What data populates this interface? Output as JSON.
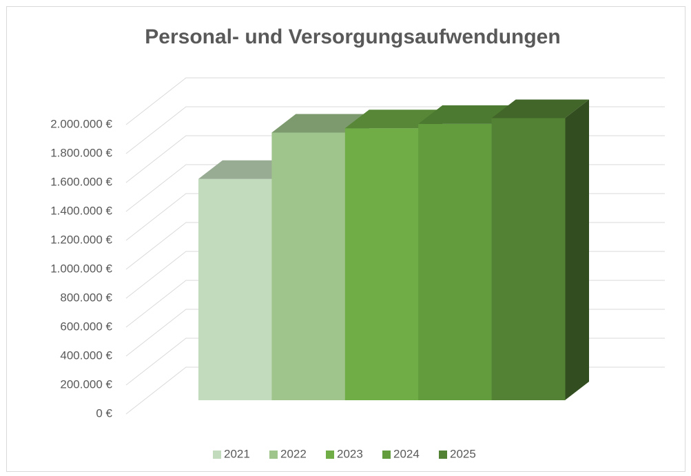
{
  "chart_data": {
    "type": "bar3d",
    "title": "Personal- und Versorgungsaufwendungen",
    "categories": [
      null
    ],
    "series": [
      {
        "name": "2021",
        "color": "#c3dbbd",
        "values": [
          1530000
        ]
      },
      {
        "name": "2022",
        "color": "#9fc58c",
        "values": [
          1850000
        ]
      },
      {
        "name": "2023",
        "color": "#70ad47",
        "values": [
          1880000
        ]
      },
      {
        "name": "2024",
        "color": "#629c3d",
        "values": [
          1910000
        ]
      },
      {
        "name": "2025",
        "color": "#548235",
        "values": [
          1950000
        ]
      }
    ],
    "ylim": [
      0,
      2000000
    ],
    "yticks": [
      {
        "value": 0,
        "label": "0 €"
      },
      {
        "value": 200000,
        "label": "200.000 €"
      },
      {
        "value": 400000,
        "label": "400.000 €"
      },
      {
        "value": 600000,
        "label": "600.000 €"
      },
      {
        "value": 800000,
        "label": "800.000 €"
      },
      {
        "value": 1000000,
        "label": "1.000.000 €"
      },
      {
        "value": 1200000,
        "label": "1.200.000 €"
      },
      {
        "value": 1400000,
        "label": "1.400.000 €"
      },
      {
        "value": 1600000,
        "label": "1.600.000 €"
      },
      {
        "value": 1800000,
        "label": "1.800.000 €"
      },
      {
        "value": 2000000,
        "label": "2.000.000 €"
      }
    ],
    "grid": true,
    "legend": "bottom"
  }
}
